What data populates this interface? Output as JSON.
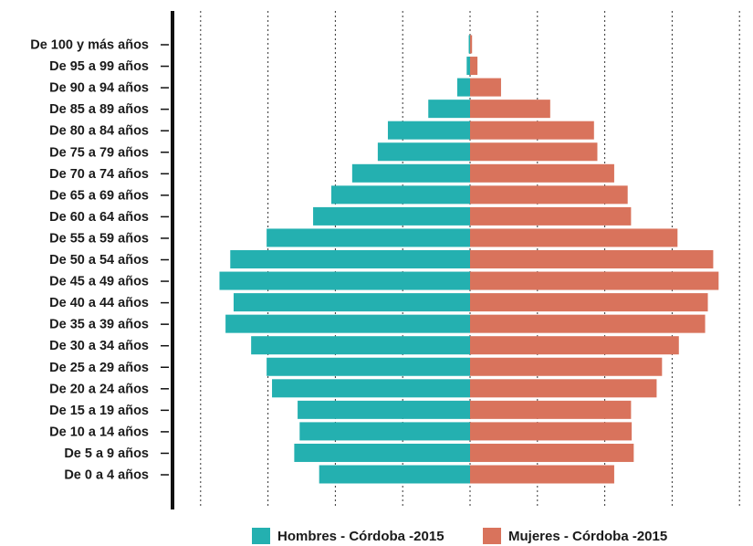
{
  "chart_data": {
    "type": "bar",
    "orientation": "horizontal",
    "layout": "population-pyramid",
    "categories": [
      "De 100 y más años",
      "De 95 a 99 años",
      "De 90 a 94 años",
      "De 85 a 89 años",
      "De 80 a 84 años",
      "De 75 a 79 años",
      "De 70 a 74 años",
      "De 65 a 69 años",
      "De 60 a 64 años",
      "De 55 a 59 años",
      "De 50 a 54 años",
      "De 45 a 49 años",
      "De 40 a 44 años",
      "De 35 a 39 años",
      "De 30 a 34 años",
      "De 25 a 29 años",
      "De 20 a 24 años",
      "De 15 a 19 años",
      "De 10 a 14 años",
      "De 5 a 9 años",
      "De 0 a 4 años"
    ],
    "series": [
      {
        "name": "Hombres - Córdoba -2015",
        "side": "left",
        "color": "#24b0b0",
        "values": [
          0.02,
          0.05,
          0.19,
          0.62,
          1.22,
          1.37,
          1.75,
          2.06,
          2.33,
          3.02,
          3.56,
          3.72,
          3.51,
          3.63,
          3.25,
          3.02,
          2.94,
          2.56,
          2.53,
          2.61,
          2.24
        ]
      },
      {
        "name": "Mujeres - Córdoba -2015",
        "side": "right",
        "color": "#d9735c",
        "values": [
          0.03,
          0.11,
          0.46,
          1.19,
          1.84,
          1.89,
          2.14,
          2.34,
          2.39,
          3.08,
          3.61,
          3.69,
          3.53,
          3.49,
          3.1,
          2.85,
          2.77,
          2.39,
          2.4,
          2.43,
          2.14
        ]
      }
    ],
    "xlim": [
      -4,
      4
    ],
    "x_gridlines": [
      -4,
      -3,
      -2,
      -1,
      0,
      1,
      2,
      3,
      4
    ],
    "x_tick_labels_visible": false,
    "grid": "vertical-dotted",
    "legend": "bottom"
  }
}
